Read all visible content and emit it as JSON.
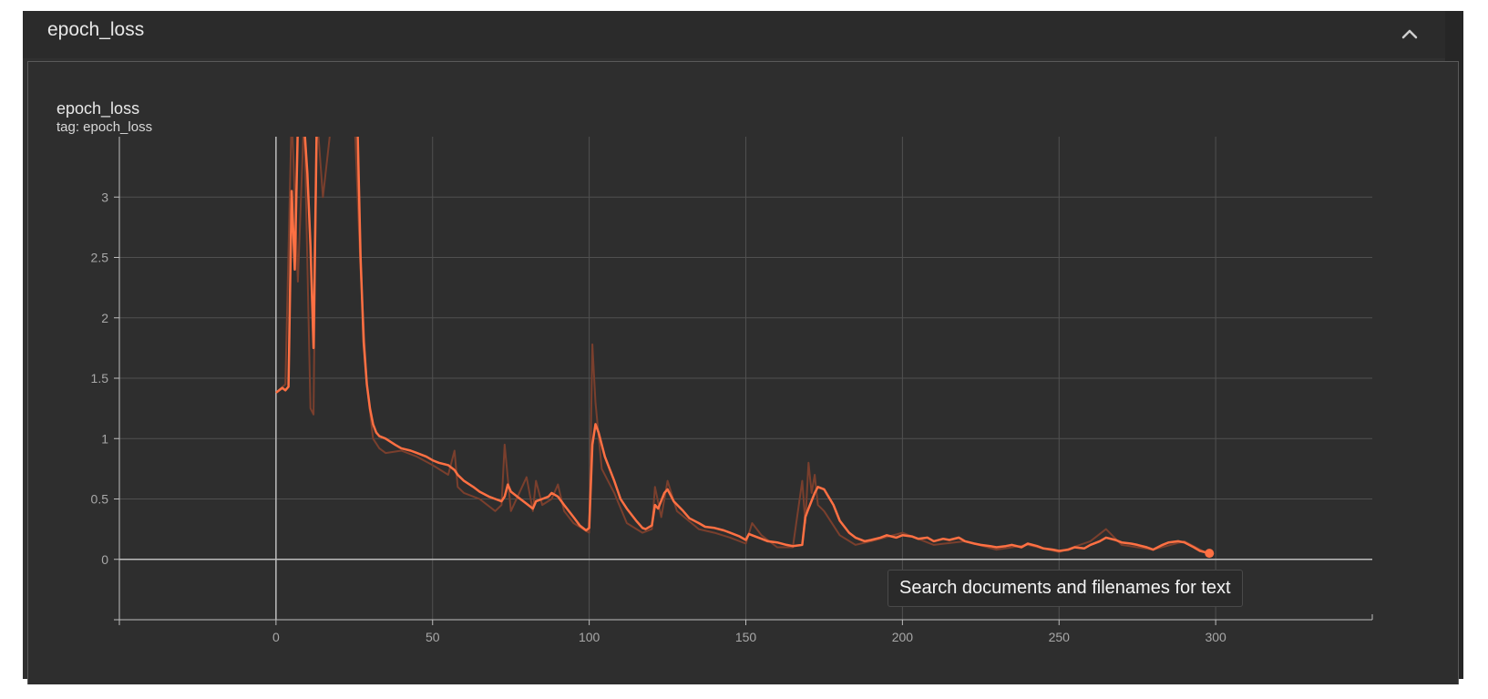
{
  "panel": {
    "title": "epoch_loss"
  },
  "card": {
    "title": "epoch_loss",
    "tag": "tag: epoch_loss"
  },
  "tooltip": {
    "text": "Search documents and filenames for text"
  },
  "icons": {
    "collapse": "chevron-up-icon"
  },
  "colors": {
    "series": "#ff7043",
    "raw_series": "#7a3f2d",
    "grid": "#505050",
    "axis": "#bdbdbd",
    "tick_label": "#a8a8a8",
    "background": "#2e2e2e"
  },
  "chart_data": {
    "type": "line",
    "title": "epoch_loss",
    "xlabel": "",
    "ylabel": "",
    "xlim": [
      -50,
      350
    ],
    "ylim": [
      -0.5,
      3.5
    ],
    "x_ticks": [
      0,
      50,
      100,
      150,
      200,
      250,
      300
    ],
    "y_ticks": [
      0,
      0.5,
      1,
      1.5,
      2,
      2.5,
      3
    ],
    "y_tick_labels": [
      "0",
      "0.5",
      "1",
      "1.5",
      "2",
      "2.5",
      "3"
    ],
    "grid": true,
    "series": [
      {
        "smoothed": true,
        "x": [
          0,
          2,
          3,
          4,
          5,
          6,
          7,
          8,
          9,
          10,
          11,
          12,
          13,
          14,
          15,
          18,
          20,
          25,
          26,
          27,
          28,
          29,
          30,
          31,
          32,
          33,
          34,
          35,
          38,
          40,
          43,
          45,
          48,
          50,
          52,
          55,
          57,
          58,
          60,
          63,
          65,
          68,
          70,
          72,
          73,
          74,
          75,
          78,
          80,
          82,
          83,
          85,
          87,
          88,
          90,
          92,
          95,
          97,
          99,
          100,
          101,
          102,
          103,
          105,
          108,
          110,
          112,
          115,
          117,
          118,
          120,
          121,
          122,
          124,
          125,
          127,
          130,
          132,
          135,
          137,
          140,
          143,
          145,
          148,
          150,
          151,
          152,
          154,
          155,
          157,
          160,
          163,
          165,
          168,
          169,
          170,
          172,
          173,
          175,
          178,
          180,
          183,
          185,
          188,
          190,
          193,
          195,
          198,
          200,
          203,
          205,
          208,
          210,
          213,
          215,
          218,
          220,
          223,
          225,
          228,
          230,
          233,
          235,
          238,
          240,
          243,
          245,
          248,
          250,
          253,
          255,
          258,
          260,
          263,
          265,
          268,
          270,
          273,
          275,
          278,
          280,
          283,
          285,
          288,
          290,
          293,
          295,
          298
        ],
        "y": [
          1.38,
          1.42,
          1.4,
          1.43,
          3.05,
          2.4,
          3.6,
          3.55,
          3.6,
          3.2,
          2.6,
          1.75,
          3.6,
          3.6,
          3.6,
          3.6,
          3.6,
          3.6,
          3.6,
          2.5,
          1.8,
          1.45,
          1.25,
          1.12,
          1.05,
          1.02,
          1.01,
          1.0,
          0.95,
          0.92,
          0.9,
          0.88,
          0.85,
          0.82,
          0.8,
          0.78,
          0.74,
          0.7,
          0.65,
          0.6,
          0.56,
          0.52,
          0.5,
          0.48,
          0.52,
          0.62,
          0.56,
          0.5,
          0.46,
          0.42,
          0.48,
          0.5,
          0.52,
          0.55,
          0.52,
          0.45,
          0.35,
          0.28,
          0.24,
          0.26,
          0.95,
          1.12,
          1.05,
          0.85,
          0.65,
          0.5,
          0.42,
          0.32,
          0.26,
          0.25,
          0.28,
          0.45,
          0.42,
          0.55,
          0.58,
          0.48,
          0.4,
          0.34,
          0.3,
          0.27,
          0.26,
          0.24,
          0.22,
          0.19,
          0.16,
          0.21,
          0.2,
          0.18,
          0.17,
          0.15,
          0.14,
          0.12,
          0.11,
          0.12,
          0.35,
          0.42,
          0.55,
          0.6,
          0.58,
          0.45,
          0.32,
          0.22,
          0.18,
          0.15,
          0.16,
          0.18,
          0.2,
          0.18,
          0.2,
          0.19,
          0.17,
          0.18,
          0.15,
          0.17,
          0.16,
          0.18,
          0.15,
          0.13,
          0.12,
          0.11,
          0.1,
          0.11,
          0.12,
          0.1,
          0.13,
          0.11,
          0.09,
          0.08,
          0.07,
          0.08,
          0.1,
          0.09,
          0.12,
          0.15,
          0.18,
          0.16,
          0.14,
          0.13,
          0.12,
          0.1,
          0.08,
          0.12,
          0.14,
          0.15,
          0.14,
          0.1,
          0.07,
          0.05
        ]
      },
      {
        "smoothed": false,
        "x": [
          0,
          3,
          5,
          7,
          9,
          11,
          12,
          13,
          15,
          18,
          20,
          25,
          27,
          29,
          31,
          33,
          35,
          40,
          45,
          50,
          55,
          57,
          58,
          60,
          65,
          70,
          72,
          73,
          75,
          80,
          82,
          83,
          85,
          88,
          90,
          92,
          95,
          100,
          101,
          102,
          104,
          108,
          112,
          117,
          120,
          121,
          123,
          125,
          128,
          135,
          140,
          145,
          150,
          152,
          155,
          160,
          165,
          168,
          169,
          170,
          171,
          172,
          173,
          175,
          180,
          185,
          190,
          200,
          210,
          220,
          230,
          240,
          250,
          260,
          265,
          270,
          280,
          290,
          298
        ],
        "y": [
          1.38,
          1.45,
          3.7,
          2.3,
          3.7,
          1.25,
          1.2,
          3.7,
          3.0,
          3.7,
          3.7,
          3.7,
          2.4,
          1.45,
          1.0,
          0.92,
          0.88,
          0.9,
          0.85,
          0.78,
          0.7,
          0.9,
          0.6,
          0.55,
          0.5,
          0.4,
          0.45,
          0.95,
          0.4,
          0.68,
          0.4,
          0.65,
          0.45,
          0.5,
          0.62,
          0.4,
          0.3,
          0.22,
          1.78,
          1.3,
          0.75,
          0.55,
          0.3,
          0.22,
          0.25,
          0.6,
          0.35,
          0.65,
          0.4,
          0.25,
          0.22,
          0.18,
          0.13,
          0.3,
          0.2,
          0.1,
          0.1,
          0.65,
          0.3,
          0.8,
          0.55,
          0.7,
          0.45,
          0.4,
          0.2,
          0.12,
          0.15,
          0.22,
          0.12,
          0.15,
          0.08,
          0.12,
          0.06,
          0.15,
          0.25,
          0.12,
          0.08,
          0.15,
          0.04
        ]
      }
    ]
  }
}
